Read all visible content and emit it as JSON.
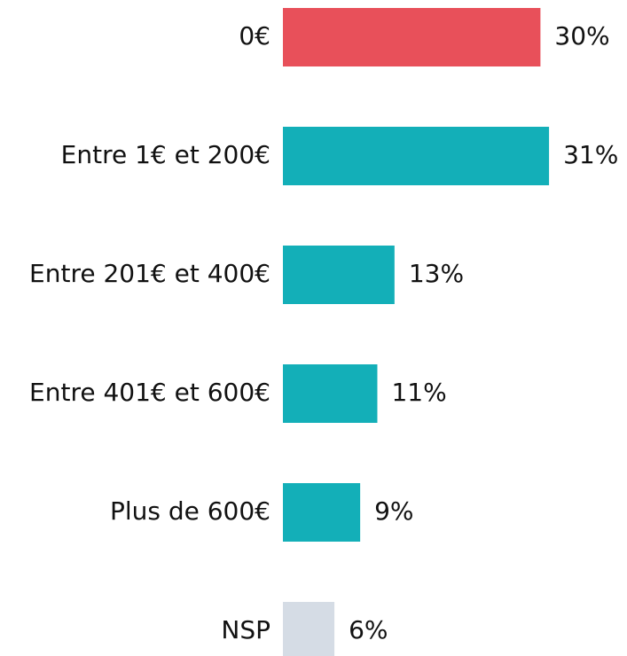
{
  "chart_data": {
    "type": "bar",
    "orientation": "horizontal",
    "categories": [
      "0€",
      "Entre 1€ et 200€",
      "Entre 201€ et 400€",
      "Entre 401€ et 600€",
      "Plus de 600€",
      "NSP"
    ],
    "values": [
      30,
      31,
      13,
      11,
      9,
      6
    ],
    "value_labels": [
      "30%",
      "31%",
      "13%",
      "11%",
      "9%",
      "6%"
    ],
    "colors": [
      "#e8505a",
      "#13afb8",
      "#13afb8",
      "#13afb8",
      "#13afb8",
      "#d5dce5"
    ]
  }
}
